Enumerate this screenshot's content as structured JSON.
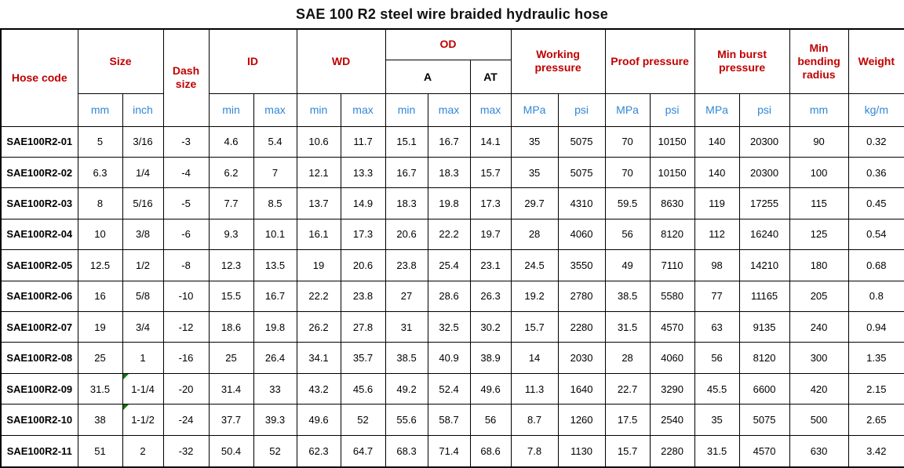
{
  "title": "SAE 100 R2 steel wire braided hydraulic hose",
  "colors": {
    "header_red": "#C00000",
    "unit_blue": "#2F86D8",
    "marker_green": "#0B7A0B",
    "grid": "#000000"
  },
  "header": {
    "hose_code": "Hose code",
    "size": "Size",
    "dash_size": "Dash size",
    "id": "ID",
    "wd": "WD",
    "od": "OD",
    "od_a": "A",
    "od_at": "AT",
    "working_pressure": "Working pressure",
    "proof_pressure": "Proof pressure",
    "min_burst_pressure": "Min burst pressure",
    "min_bending_radius": "Min bending radius",
    "weight": "Weight",
    "units": {
      "mm": "mm",
      "inch": "inch",
      "min": "min",
      "max": "max",
      "mpa": "MPa",
      "psi": "psi",
      "kg_m": "kg/m"
    }
  },
  "rows": [
    {
      "hose_code": "SAE100R2-01",
      "values": [
        "5",
        "3/16",
        "-3",
        "4.6",
        "5.4",
        "10.6",
        "11.7",
        "15.1",
        "16.7",
        "14.1",
        "35",
        "5075",
        "70",
        "10150",
        "140",
        "20300",
        "90",
        "0.32"
      ]
    },
    {
      "hose_code": "SAE100R2-02",
      "values": [
        "6.3",
        "1/4",
        "-4",
        "6.2",
        "7",
        "12.1",
        "13.3",
        "16.7",
        "18.3",
        "15.7",
        "35",
        "5075",
        "70",
        "10150",
        "140",
        "20300",
        "100",
        "0.36"
      ]
    },
    {
      "hose_code": "SAE100R2-03",
      "values": [
        "8",
        "5/16",
        "-5",
        "7.7",
        "8.5",
        "13.7",
        "14.9",
        "18.3",
        "19.8",
        "17.3",
        "29.7",
        "4310",
        "59.5",
        "8630",
        "119",
        "17255",
        "115",
        "0.45"
      ]
    },
    {
      "hose_code": "SAE100R2-04",
      "values": [
        "10",
        "3/8",
        "-6",
        "9.3",
        "10.1",
        "16.1",
        "17.3",
        "20.6",
        "22.2",
        "19.7",
        "28",
        "4060",
        "56",
        "8120",
        "112",
        "16240",
        "125",
        "0.54"
      ]
    },
    {
      "hose_code": "SAE100R2-05",
      "values": [
        "12.5",
        "1/2",
        "-8",
        "12.3",
        "13.5",
        "19",
        "20.6",
        "23.8",
        "25.4",
        "23.1",
        "24.5",
        "3550",
        "49",
        "7110",
        "98",
        "14210",
        "180",
        "0.68"
      ]
    },
    {
      "hose_code": "SAE100R2-06",
      "values": [
        "16",
        "5/8",
        "-10",
        "15.5",
        "16.7",
        "22.2",
        "23.8",
        "27",
        "28.6",
        "26.3",
        "19.2",
        "2780",
        "38.5",
        "5580",
        "77",
        "11165",
        "205",
        "0.8"
      ]
    },
    {
      "hose_code": "SAE100R2-07",
      "values": [
        "19",
        "3/4",
        "-12",
        "18.6",
        "19.8",
        "26.2",
        "27.8",
        "31",
        "32.5",
        "30.2",
        "15.7",
        "2280",
        "31.5",
        "4570",
        "63",
        "9135",
        "240",
        "0.94"
      ]
    },
    {
      "hose_code": "SAE100R2-08",
      "values": [
        "25",
        "1",
        "-16",
        "25",
        "26.4",
        "34.1",
        "35.7",
        "38.5",
        "40.9",
        "38.9",
        "14",
        "2030",
        "28",
        "4060",
        "56",
        "8120",
        "300",
        "1.35"
      ]
    },
    {
      "hose_code": "SAE100R2-09",
      "values": [
        "31.5",
        "1-1/4",
        "-20",
        "31.4",
        "33",
        "43.2",
        "45.6",
        "49.2",
        "52.4",
        "49.6",
        "11.3",
        "1640",
        "22.7",
        "3290",
        "45.5",
        "6600",
        "420",
        "2.15"
      ]
    },
    {
      "hose_code": "SAE100R2-10",
      "values": [
        "38",
        "1-1/2",
        "-24",
        "37.7",
        "39.3",
        "49.6",
        "52",
        "55.6",
        "58.7",
        "56",
        "8.7",
        "1260",
        "17.5",
        "2540",
        "35",
        "5075",
        "500",
        "2.65"
      ]
    },
    {
      "hose_code": "SAE100R2-11",
      "values": [
        "51",
        "2",
        "-32",
        "50.4",
        "52",
        "62.3",
        "64.7",
        "68.3",
        "71.4",
        "68.6",
        "7.8",
        "1130",
        "15.7",
        "2280",
        "31.5",
        "4570",
        "630",
        "3.42"
      ]
    }
  ],
  "green_marker_cells": [
    {
      "row": 8,
      "col": 1
    },
    {
      "row": 9,
      "col": 1
    }
  ]
}
